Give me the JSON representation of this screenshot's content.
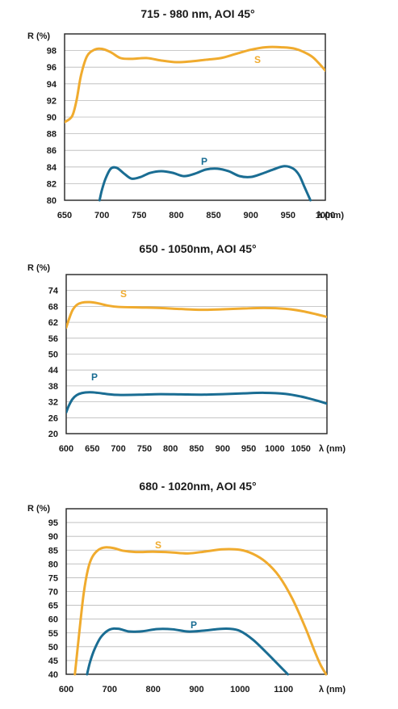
{
  "chart_data": [
    {
      "type": "line",
      "title": "715 - 980 nm, AOI 45°",
      "ylabel": "R (%)",
      "xlabel": "λ (nm)",
      "xlim": [
        650,
        1000
      ],
      "ylim": [
        80,
        100
      ],
      "xticks": [
        650,
        700,
        750,
        800,
        850,
        900,
        950,
        1000
      ],
      "yticks": [
        80,
        82,
        84,
        86,
        88,
        90,
        92,
        94,
        96,
        98
      ],
      "grid": true,
      "series": [
        {
          "name": "S",
          "color": "#f0ab2e",
          "x": [
            650,
            660,
            666,
            672,
            680,
            690,
            700,
            712,
            725,
            740,
            760,
            780,
            800,
            820,
            840,
            860,
            880,
            900,
            920,
            940,
            960,
            980,
            990,
            1000
          ],
          "y": [
            89.4,
            90.1,
            92,
            95,
            97.3,
            98.1,
            98.2,
            97.8,
            97.1,
            97.0,
            97.1,
            96.8,
            96.6,
            96.7,
            96.9,
            97.1,
            97.6,
            98.1,
            98.4,
            98.4,
            98.2,
            97.4,
            96.6,
            95.6
          ]
        },
        {
          "name": "P",
          "color": "#1a6d93",
          "x": [
            697,
            700,
            705,
            712,
            720,
            730,
            740,
            752,
            765,
            780,
            795,
            810,
            825,
            840,
            855,
            870,
            885,
            900,
            915,
            930,
            945,
            957,
            965,
            972,
            980
          ],
          "y": [
            80,
            81.2,
            82.6,
            83.8,
            83.9,
            83.2,
            82.6,
            82.8,
            83.3,
            83.5,
            83.3,
            82.9,
            83.2,
            83.7,
            83.8,
            83.5,
            82.9,
            82.8,
            83.2,
            83.7,
            84.1,
            83.8,
            83.0,
            81.6,
            80
          ]
        }
      ]
    },
    {
      "type": "line",
      "title": "650 - 1050nm, AOI 45°",
      "ylabel": "R (%)",
      "xlabel": "λ (nm)",
      "xlim": [
        600,
        1100
      ],
      "ylim": [
        20,
        80
      ],
      "xticks": [
        600,
        650,
        700,
        750,
        800,
        850,
        900,
        950,
        1000,
        1050
      ],
      "yticks": [
        20,
        26,
        32,
        38,
        44,
        50,
        56,
        62,
        68,
        74
      ],
      "grid": true,
      "series": [
        {
          "name": "S",
          "color": "#f0ab2e",
          "x": [
            600,
            605,
            612,
            620,
            630,
            645,
            660,
            680,
            700,
            740,
            780,
            820,
            860,
            900,
            940,
            980,
            1020,
            1050,
            1080,
            1100
          ],
          "y": [
            60,
            63,
            66.5,
            68.5,
            69.4,
            69.6,
            69.2,
            68.3,
            67.8,
            67.6,
            67.4,
            67.0,
            66.7,
            66.9,
            67.2,
            67.4,
            67.1,
            66.3,
            65.0,
            64.0
          ]
        },
        {
          "name": "P",
          "color": "#1a6d93",
          "x": [
            600,
            605,
            612,
            620,
            630,
            645,
            660,
            680,
            700,
            740,
            780,
            820,
            860,
            900,
            940,
            980,
            1020,
            1050,
            1080,
            1100
          ],
          "y": [
            28,
            30.5,
            33,
            34.5,
            35.3,
            35.6,
            35.4,
            34.9,
            34.6,
            34.7,
            34.9,
            34.8,
            34.7,
            34.9,
            35.2,
            35.4,
            35.0,
            34.0,
            32.5,
            31.3
          ]
        }
      ]
    },
    {
      "type": "line",
      "title": "680 - 1020nm, AOI 45°",
      "ylabel": "R (%)",
      "xlabel": "λ (nm)",
      "xlim": [
        600,
        1200
      ],
      "ylim": [
        40,
        100
      ],
      "xticks": [
        600,
        700,
        800,
        900,
        1000,
        1100
      ],
      "yticks": [
        40,
        45,
        50,
        55,
        60,
        65,
        70,
        75,
        80,
        85,
        90,
        95
      ],
      "grid": true,
      "series": [
        {
          "name": "S",
          "color": "#f0ab2e",
          "x": [
            620,
            630,
            640,
            650,
            660,
            675,
            690,
            710,
            730,
            760,
            800,
            840,
            880,
            920,
            960,
            1000,
            1030,
            1060,
            1090,
            1120,
            1150,
            1170,
            1185,
            1198
          ],
          "y": [
            40,
            55,
            69,
            78,
            82.5,
            85.2,
            86.0,
            85.7,
            84.8,
            84.3,
            84.4,
            84.2,
            83.8,
            84.5,
            85.3,
            85.1,
            83.6,
            80.6,
            75.5,
            67.5,
            57.0,
            49.0,
            43.5,
            40
          ]
        },
        {
          "name": "P",
          "color": "#1a6d93",
          "x": [
            648,
            655,
            665,
            680,
            700,
            720,
            745,
            775,
            810,
            845,
            880,
            915,
            950,
            975,
            1000,
            1030,
            1060,
            1085,
            1110
          ],
          "y": [
            40,
            44.5,
            49,
            53.5,
            56.2,
            56.5,
            55.5,
            55.6,
            56.4,
            56.3,
            55.5,
            55.8,
            56.4,
            56.5,
            55.7,
            52.5,
            48.0,
            44.0,
            40
          ]
        }
      ]
    }
  ]
}
